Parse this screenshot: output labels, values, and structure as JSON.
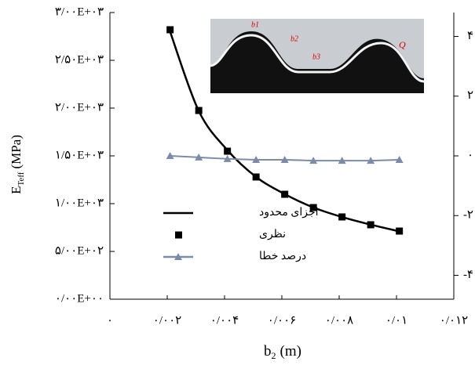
{
  "chart_data": {
    "type": "line",
    "x_label": {
      "main": "b",
      "sub": "2",
      "unit": "(m)"
    },
    "y_label": {
      "main": "E",
      "sub": "Teff",
      "unit": "(MPa)"
    },
    "xlim": [
      0,
      0.012
    ],
    "xticks": [
      {
        "value": 0,
        "label": "۰"
      },
      {
        "value": 0.002,
        "label": "۰/۰۰۲"
      },
      {
        "value": 0.004,
        "label": "۰/۰۰۴"
      },
      {
        "value": 0.006,
        "label": "۰/۰۰۶"
      },
      {
        "value": 0.008,
        "label": "۰/۰۰۸"
      },
      {
        "value": 0.01,
        "label": "۰/۰۱"
      },
      {
        "value": 0.012,
        "label": "۰/۰۱۲"
      }
    ],
    "ylim": [
      0,
      3000
    ],
    "yticks": [
      {
        "value": 0,
        "label": "۰/۰۰E+۰۰"
      },
      {
        "value": 500,
        "label": "۵/۰۰E+۰۲"
      },
      {
        "value": 1000,
        "label": "۱/۰۰E+۰۳"
      },
      {
        "value": 1500,
        "label": "۱/۵۰E+۰۳"
      },
      {
        "value": 2000,
        "label": "۲/۰۰E+۰۳"
      },
      {
        "value": 2500,
        "label": "۲/۵۰E+۰۳"
      },
      {
        "value": 3000,
        "label": "۳/۰۰E+۰۳"
      }
    ],
    "y2lim": [
      -4.8,
      4.8
    ],
    "y2ticks": [
      {
        "value": 4,
        "label": "۴"
      },
      {
        "value": 2,
        "label": "۲"
      },
      {
        "value": 0,
        "label": "۰"
      },
      {
        "value": -2,
        "label": "-۲"
      },
      {
        "value": -4,
        "label": "-۴"
      }
    ],
    "x": [
      0.0021,
      0.0031,
      0.0041,
      0.0051,
      0.0061,
      0.0071,
      0.0081,
      0.0091,
      0.0101
    ],
    "series": [
      {
        "name": "اجزای محدود",
        "color": "#000000",
        "style": "line",
        "values": [
          2800,
          1970,
          1560,
          1280,
          1100,
          960,
          860,
          780,
          710
        ]
      },
      {
        "name": "نظری",
        "color": "#000000",
        "style": "square",
        "values": [
          2820,
          1975,
          1549,
          1279,
          1098,
          959,
          861,
          779,
          713
        ]
      },
      {
        "name": "درصد خطا",
        "color": "#7b8ba8",
        "style": "line-triangle",
        "axis": "y2",
        "values": [
          0,
          -0.05,
          -0.1,
          -0.13,
          -0.13,
          -0.16,
          -0.16,
          -0.16,
          -0.13
        ]
      }
    ],
    "inset": {
      "labels": [
        "b1",
        "b2",
        "b3",
        "Q"
      ]
    }
  }
}
